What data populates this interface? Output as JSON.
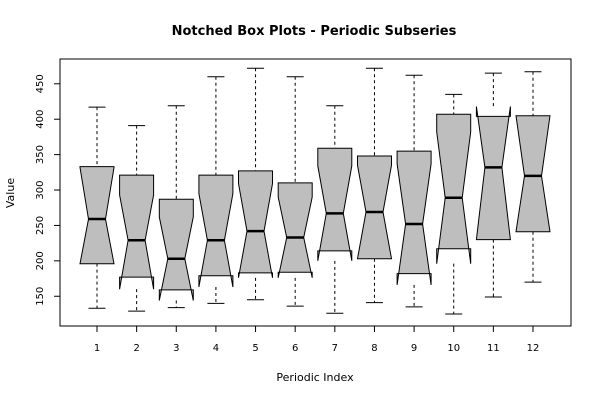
{
  "chart_data": {
    "type": "notched-boxplot",
    "title": "Notched Box Plots - Periodic Subseries",
    "xlabel": "Periodic Index",
    "ylabel": "Value",
    "ylim": [
      108,
      485
    ],
    "yticks": [
      150,
      200,
      250,
      300,
      350,
      400,
      450
    ],
    "categories": [
      "1",
      "2",
      "3",
      "4",
      "5",
      "6",
      "7",
      "8",
      "9",
      "10",
      "11",
      "12"
    ],
    "boxes": [
      {
        "label": "1",
        "whisker_low": 133,
        "q1": 196,
        "median": 259,
        "q3": 333,
        "whisker_high": 417,
        "notch_low": 196,
        "notch_high": 332
      },
      {
        "label": "2",
        "whisker_low": 129,
        "q1": 177,
        "median": 229,
        "q3": 321,
        "whisker_high": 391,
        "notch_low": 160,
        "notch_high": 293
      },
      {
        "label": "3",
        "whisker_low": 134,
        "q1": 159,
        "median": 203,
        "q3": 287,
        "whisker_high": 419,
        "notch_low": 144,
        "notch_high": 262
      },
      {
        "label": "4",
        "whisker_low": 140,
        "q1": 179,
        "median": 229,
        "q3": 321,
        "whisker_high": 460,
        "notch_low": 163,
        "notch_high": 295
      },
      {
        "label": "5",
        "whisker_low": 145,
        "q1": 183,
        "median": 242,
        "q3": 327,
        "whisker_high": 472,
        "notch_low": 176,
        "notch_high": 309
      },
      {
        "label": "6",
        "whisker_low": 136,
        "q1": 184,
        "median": 233,
        "q3": 310,
        "whisker_high": 460,
        "notch_low": 176,
        "notch_high": 290
      },
      {
        "label": "7",
        "whisker_low": 126,
        "q1": 214,
        "median": 267,
        "q3": 359,
        "whisker_high": 419,
        "notch_low": 200,
        "notch_high": 334
      },
      {
        "label": "8",
        "whisker_low": 141,
        "q1": 203,
        "median": 269,
        "q3": 348,
        "whisker_high": 472,
        "notch_low": 203,
        "notch_high": 335
      },
      {
        "label": "9",
        "whisker_low": 135,
        "q1": 182,
        "median": 252,
        "q3": 355,
        "whisker_high": 462,
        "notch_low": 166,
        "notch_high": 337
      },
      {
        "label": "10",
        "whisker_low": 125,
        "q1": 217,
        "median": 289,
        "q3": 407,
        "whisker_high": 435,
        "notch_low": 196,
        "notch_high": 382
      },
      {
        "label": "11",
        "whisker_low": 149,
        "q1": 230,
        "median": 332,
        "q3": 404,
        "whisker_high": 465,
        "notch_low": 230,
        "notch_high": 418
      },
      {
        "label": "12",
        "whisker_low": 170,
        "q1": 241,
        "median": 320,
        "q3": 405,
        "whisker_high": 467,
        "notch_low": 241,
        "notch_high": 405
      }
    ],
    "colors": {
      "box_fill": "#bebebe",
      "stroke": "#000000"
    },
    "grid": false,
    "legend": "none"
  }
}
